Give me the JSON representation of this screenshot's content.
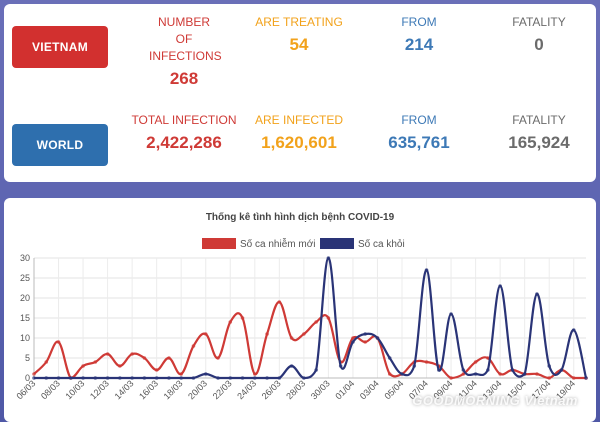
{
  "vietnam": {
    "label": "VIETNAM",
    "stats": [
      {
        "label": "NUMBER OF INFECTIONS",
        "value": "268"
      },
      {
        "label": "ARE TREATING",
        "value": "54"
      },
      {
        "label": "FROM",
        "value": "214"
      },
      {
        "label": "FATALITY",
        "value": "0"
      }
    ]
  },
  "world": {
    "label": "WORLD",
    "stats": [
      {
        "label": "TOTAL INFECTION",
        "value": "2,422,286"
      },
      {
        "label": "ARE INFECTED",
        "value": "1,620,601"
      },
      {
        "label": "FROM",
        "value": "635,761"
      },
      {
        "label": "FATALITY",
        "value": "165,924"
      }
    ]
  },
  "colors": {
    "red": "#cf3a36",
    "orange": "#f2a21b",
    "blue": "#3d79b6",
    "gray": "#6b6b6b",
    "navy": "#2a3477"
  },
  "watermark": "GOODMORNING Vietnam",
  "chart_data": {
    "type": "line",
    "title": "Thống kê tình hình dịch bệnh COVID-19",
    "legend_placement": "top",
    "ylim": [
      0,
      30
    ],
    "yticks": [
      0,
      5,
      10,
      15,
      20,
      25,
      30
    ],
    "grid": true,
    "x_tick_labels": [
      "06/03",
      "08/03",
      "10/03",
      "12/03",
      "14/03",
      "16/03",
      "18/03",
      "20/03",
      "22/03",
      "24/03",
      "26/03",
      "28/03",
      "30/03",
      "01/04",
      "03/04",
      "05/04",
      "07/04",
      "09/04",
      "11/04",
      "13/04",
      "15/04",
      "17/04",
      "19/04"
    ],
    "x": [
      "06/03",
      "07/03",
      "08/03",
      "09/03",
      "10/03",
      "11/03",
      "12/03",
      "13/03",
      "14/03",
      "15/03",
      "16/03",
      "17/03",
      "18/03",
      "19/03",
      "20/03",
      "21/03",
      "22/03",
      "23/03",
      "24/03",
      "25/03",
      "26/03",
      "27/03",
      "28/03",
      "29/03",
      "30/03",
      "31/03",
      "01/04",
      "02/04",
      "03/04",
      "04/04",
      "05/04",
      "06/04",
      "07/04",
      "08/04",
      "09/04",
      "10/04",
      "11/04",
      "12/04",
      "13/04",
      "14/04",
      "15/04",
      "16/04",
      "17/04",
      "18/04",
      "19/04",
      "20/04"
    ],
    "series": [
      {
        "name": "Số ca nhiễm mới",
        "color": "#cf3a36",
        "values": [
          1,
          4,
          9,
          0,
          3,
          4,
          6,
          3,
          6,
          5,
          2,
          5,
          1,
          8,
          11,
          5,
          14,
          15,
          1,
          11,
          19,
          10,
          11,
          14,
          15,
          4,
          10,
          9,
          10,
          1,
          1,
          4,
          4,
          3,
          0,
          1,
          4,
          5,
          1,
          2,
          1,
          1,
          0,
          2,
          0,
          0
        ]
      },
      {
        "name": "Số ca khỏi",
        "color": "#2a3477",
        "values": [
          0,
          0,
          0,
          0,
          0,
          0,
          0,
          0,
          0,
          0,
          0,
          0,
          0,
          0,
          1,
          0,
          0,
          0,
          0,
          0,
          0,
          3,
          0,
          2,
          30,
          3,
          9,
          11,
          10,
          5,
          1,
          3,
          27,
          2,
          16,
          2,
          1,
          2,
          23,
          2,
          1,
          21,
          3,
          2,
          12,
          0
        ]
      }
    ]
  }
}
